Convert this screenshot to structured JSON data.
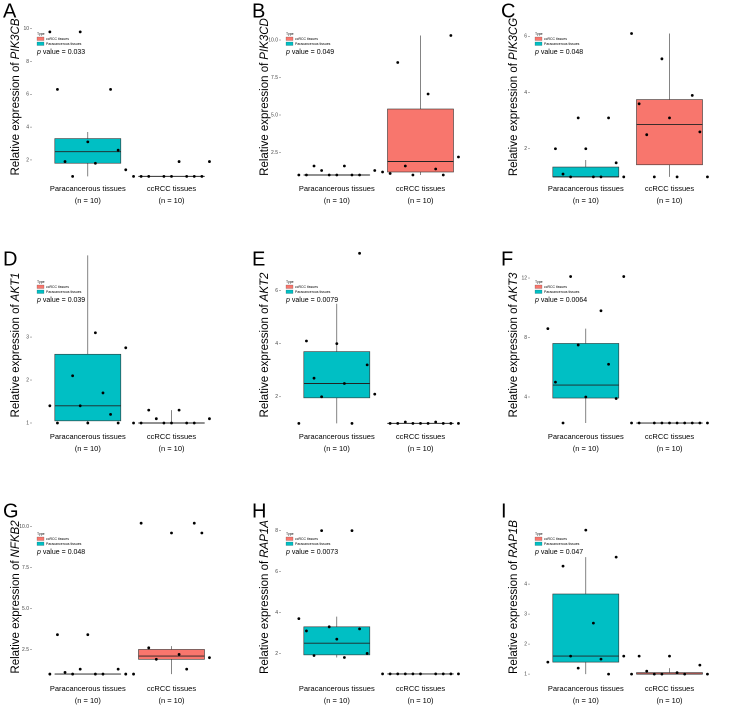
{
  "legend_title": "Type",
  "legend_entries": [
    "ccRCC tissues",
    "Paracancerous tissues"
  ],
  "legend_colors": [
    "#f8766d",
    "#00bfc4"
  ],
  "categories": [
    "Paracancerous tissues",
    "ccRCC tissues"
  ],
  "category_colors": [
    "#00bfc4",
    "#f8766d"
  ],
  "n_labels": [
    "(n = 10)",
    "(n = 10)"
  ],
  "ylabel_prefix": "Relative expression of",
  "p_symbol": "p",
  "p_word": "value =",
  "chart_data": [
    {
      "type": "box",
      "label": "A",
      "gene": "PIK3CB",
      "p_value": 0.033,
      "ylim": [
        0.9,
        11.5
      ],
      "yticks": [
        2,
        4,
        6,
        8,
        10
      ],
      "groups": [
        {
          "box": [
            1.0,
            1.8,
            2.5,
            3.3,
            3.7
          ],
          "points": [
            9.8,
            9.8,
            6.3,
            6.3,
            3.1,
            2.6,
            1.9,
            1.8,
            1.4,
            1.0
          ]
        },
        {
          "box": [
            1,
            1,
            1,
            1,
            1
          ],
          "points": [
            1,
            1,
            1,
            1,
            1,
            1,
            1,
            1,
            1.9,
            1.9
          ]
        }
      ]
    },
    {
      "type": "box",
      "label": "B",
      "gene": "PIK3CD",
      "p_value": 0.049,
      "ylim": [
        0.8,
        12.4
      ],
      "yticks": [
        2.5,
        {
          "value": 5,
          "label": "5.0"
        },
        7.5,
        {
          "value": 10,
          "label": "10.0"
        }
      ],
      "groups": [
        {
          "box": [
            1,
            1,
            1,
            1,
            1
          ],
          "points": [
            1.6,
            1.6,
            1.3,
            1.3,
            1,
            1,
            1,
            1,
            1,
            1
          ]
        },
        {
          "box": [
            1.0,
            1.2,
            1.9,
            5.4,
            10.3
          ],
          "points": [
            10.3,
            8.5,
            6.4,
            2.2,
            1.6,
            1.4,
            1.2,
            1.0,
            1.0,
            1.1
          ]
        }
      ]
    },
    {
      "type": "box",
      "label": "C",
      "gene": "PIK3CG",
      "p_value": 0.048,
      "ylim": [
        0.96,
        7.15
      ],
      "yticks": [
        2,
        4,
        6
      ],
      "groups": [
        {
          "box": [
            1,
            1,
            1,
            1.35,
            1.6
          ],
          "points": [
            3.1,
            3.1,
            2.0,
            2.0,
            1.5,
            1.1,
            1,
            1,
            1,
            1
          ]
        },
        {
          "box": [
            1.0,
            1.43,
            2.86,
            3.75,
            6.1
          ],
          "points": [
            6.1,
            5.2,
            3.9,
            3.6,
            3.1,
            2.6,
            2.5,
            1.0,
            1.0,
            1.0
          ]
        }
      ]
    },
    {
      "type": "box",
      "label": "D",
      "gene": "AKT1",
      "p_value": 0.039,
      "ylim": [
        0.93,
        4.98
      ],
      "yticks": [
        1,
        2,
        3
      ],
      "groups": [
        {
          "box": [
            1.0,
            1.05,
            1.4,
            2.6,
            4.9
          ],
          "points": [
            3.1,
            2.75,
            2.1,
            1.7,
            1.4,
            1.4,
            1.2,
            1.0,
            1.0,
            1.0
          ]
        },
        {
          "box": [
            1,
            1,
            1,
            1,
            1.3
          ],
          "points": [
            1.3,
            1.3,
            1.1,
            1.1,
            1.0,
            1.0,
            1.0,
            1.0,
            1.0,
            1.0
          ]
        }
      ]
    },
    {
      "type": "box",
      "label": "E",
      "gene": "AKT2",
      "p_value": 0.0079,
      "ylim": [
        0.9,
        7.45
      ],
      "yticks": [
        2,
        4,
        6
      ],
      "groups": [
        {
          "box": [
            1.0,
            1.96,
            2.5,
            3.7,
            5.5
          ],
          "points": [
            7.4,
            4.1,
            4.0,
            3.2,
            2.7,
            2.5,
            2.1,
            2.0,
            1.0,
            1.0
          ]
        },
        {
          "box": [
            1,
            1,
            1,
            1,
            1.05
          ],
          "points": [
            1.0,
            1.0,
            1.0,
            1.0,
            1.0,
            1.0,
            1.0,
            1.0,
            1.05,
            1.05
          ]
        }
      ]
    },
    {
      "type": "box",
      "label": "F",
      "gene": "AKT3",
      "p_value": 0.0064,
      "ylim": [
        2.05,
        13.75
      ],
      "yticks": [
        4,
        8,
        12
      ],
      "groups": [
        {
          "box": [
            2.25,
            3.93,
            4.8,
            7.6,
            8.6
          ],
          "points": [
            12.1,
            12.1,
            9.8,
            8.6,
            7.5,
            6.2,
            5.0,
            4.0,
            3.9,
            2.25
          ]
        },
        {
          "box": [
            2.25,
            2.25,
            2.25,
            2.25,
            2.25
          ],
          "points": [
            2.25,
            2.25,
            2.25,
            2.25,
            2.25,
            2.25,
            2.25,
            2.25,
            2.25,
            2.25
          ]
        }
      ]
    },
    {
      "type": "box",
      "label": "G",
      "gene": "NFKB2",
      "p_value": 0.048,
      "ylim": [
        0.76,
        11.37
      ],
      "yticks": [
        2.5,
        {
          "value": 5,
          "label": "5.0"
        },
        7.5,
        {
          "value": 10,
          "label": "10.0"
        }
      ],
      "groups": [
        {
          "box": [
            1,
            1,
            1,
            1,
            1
          ],
          "points": [
            3.4,
            3.4,
            1.3,
            1.1,
            1,
            1,
            1,
            1,
            1,
            1.3
          ]
        },
        {
          "box": [
            1.0,
            1.9,
            2.1,
            2.5,
            2.7
          ],
          "points": [
            10.2,
            10.2,
            9.6,
            9.6,
            2.6,
            2.2,
            2.0,
            1.9,
            1.3,
            1.0
          ]
        }
      ]
    },
    {
      "type": "box",
      "label": "H",
      "gene": "RAP1A",
      "p_value": 0.0073,
      "ylim": [
        0.8,
        9.3
      ],
      "yticks": [
        2,
        4,
        6,
        8
      ],
      "groups": [
        {
          "box": [
            1.8,
            1.93,
            2.5,
            3.3,
            3.8
          ],
          "points": [
            8.0,
            8.0,
            3.7,
            3.3,
            3.2,
            3.1,
            2.7,
            2.0,
            1.9,
            1.8
          ]
        },
        {
          "box": [
            1,
            1,
            1,
            1,
            1
          ],
          "points": [
            1,
            1,
            1,
            1,
            1,
            1,
            1,
            1,
            1,
            1
          ]
        }
      ]
    },
    {
      "type": "box",
      "label": "I",
      "gene": "RAP1B",
      "p_value": 0.047,
      "ylim": [
        0.87,
        6.67
      ],
      "yticks": [
        1,
        2,
        3,
        4
      ],
      "groups": [
        {
          "box": [
            1.0,
            1.4,
            1.6,
            3.67,
            4.9
          ],
          "points": [
            5.8,
            4.9,
            4.6,
            2.7,
            1.6,
            1.6,
            1.5,
            1.4,
            1.2,
            1.0
          ]
        },
        {
          "box": [
            1,
            1,
            1,
            1.05,
            1.2
          ],
          "points": [
            1.6,
            1.6,
            1.3,
            1.1,
            1.05,
            1,
            1,
            1,
            1,
            1
          ]
        }
      ]
    }
  ]
}
